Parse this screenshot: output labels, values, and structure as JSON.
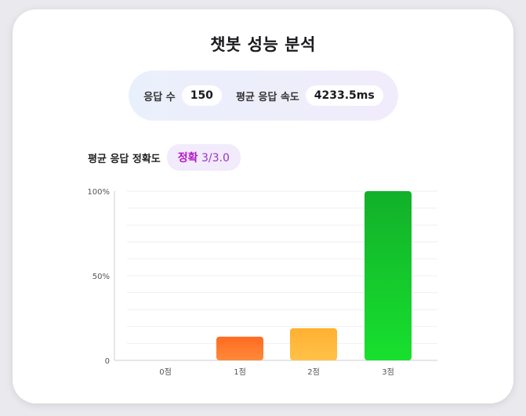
{
  "title": "챗봇 성능 분석",
  "stats": {
    "responses_label": "응답 수",
    "responses_value": "150",
    "speed_label": "평균 응답 속도",
    "speed_value": "4233.5ms"
  },
  "accuracy": {
    "label": "평균 응답 정확도",
    "word": "정확",
    "score": "3/3.0"
  },
  "colors": {
    "bar_0": [
      "#ff7a2e",
      "#ff7a2e"
    ],
    "bar_1": [
      "#ff6a22",
      "#ff8a3a"
    ],
    "bar_2": [
      "#ffb030",
      "#ffc24a"
    ],
    "bar_3": [
      "#12b02a",
      "#18e02e"
    ],
    "accent": "#b316c9"
  },
  "chart_data": {
    "type": "bar",
    "categories": [
      "0점",
      "1점",
      "2점",
      "3점"
    ],
    "values": [
      0,
      14,
      19,
      100
    ],
    "ylim": [
      0,
      100
    ],
    "yticks": [
      {
        "value": 0,
        "label": "0"
      },
      {
        "value": 50,
        "label": "50%"
      },
      {
        "value": 100,
        "label": "100%"
      }
    ],
    "grid": true,
    "xlabel": "",
    "ylabel": ""
  }
}
